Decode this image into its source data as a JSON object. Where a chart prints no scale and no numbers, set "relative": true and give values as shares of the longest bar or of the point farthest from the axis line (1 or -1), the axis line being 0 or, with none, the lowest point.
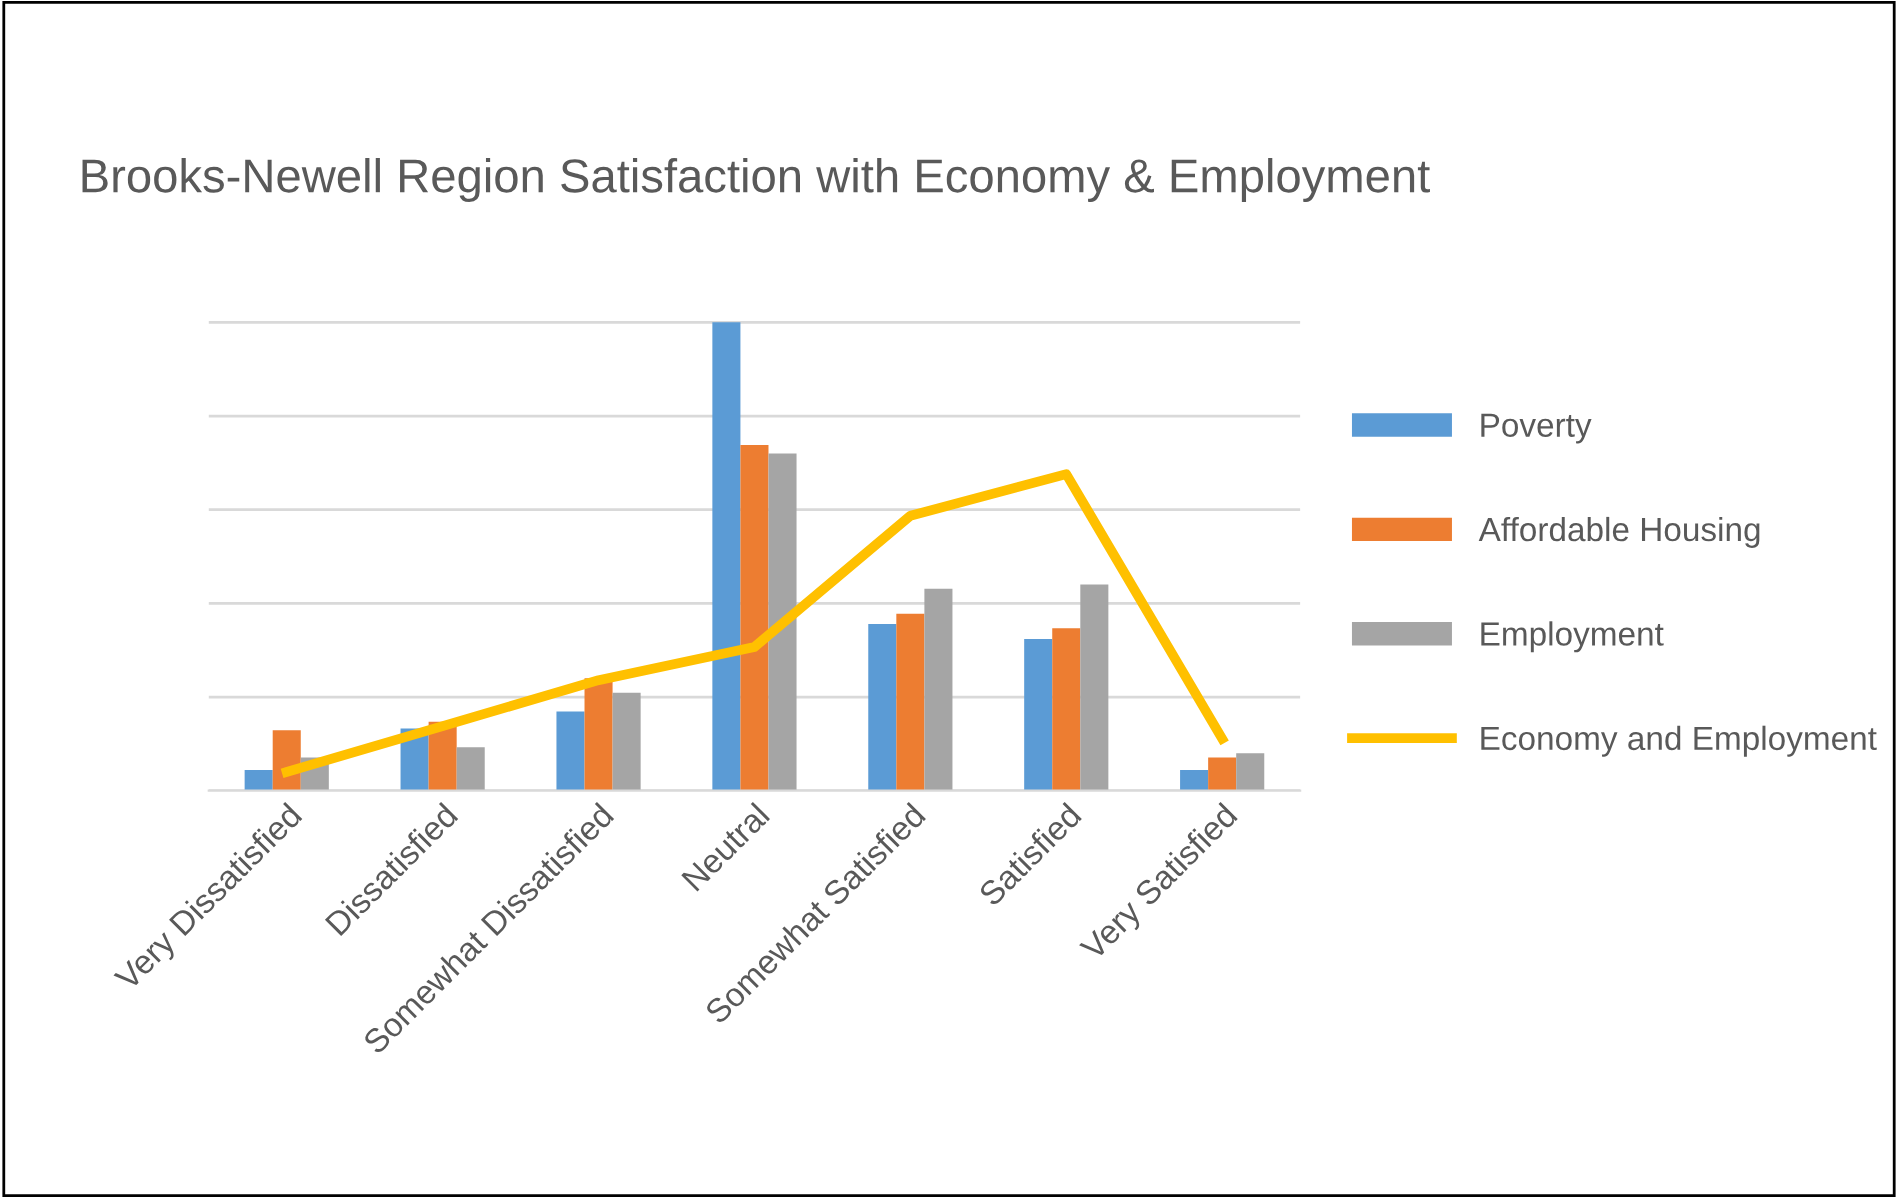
{
  "chart_data": {
    "type": "bar",
    "title": "Brooks-Newell Region Satisfaction with Economy & Employment",
    "relative": true,
    "grid": "y",
    "legend": "right",
    "categories": [
      "Very Dissatisfied",
      "Dissatisfied",
      "Somewhat Dissatisfied",
      "Neutral",
      "Somewhat Satisfied",
      "Satisfied",
      "Very Satisfied"
    ],
    "series": [
      {
        "name": "Poverty",
        "color": "#5b9bd5",
        "values": [
          0.044,
          0.133,
          0.169,
          1,
          0.356,
          0.324,
          0.044
        ]
      },
      {
        "name": "Affordable Housing",
        "color": "#ed7d31",
        "values": [
          0.129,
          0.147,
          0.24,
          0.738,
          0.378,
          0.347,
          0.071
        ]
      },
      {
        "name": "Employment",
        "color": "#a5a5a5",
        "values": [
          0.071,
          0.093,
          0.209,
          0.72,
          0.431,
          0.44,
          0.08
        ]
      },
      {
        "name": "Economy and Employment",
        "type": "line",
        "color": "#ffc000",
        "values": [
          0.04,
          0.138,
          0.236,
          0.307,
          0.587,
          0.676,
          0.111
        ]
      }
    ]
  }
}
